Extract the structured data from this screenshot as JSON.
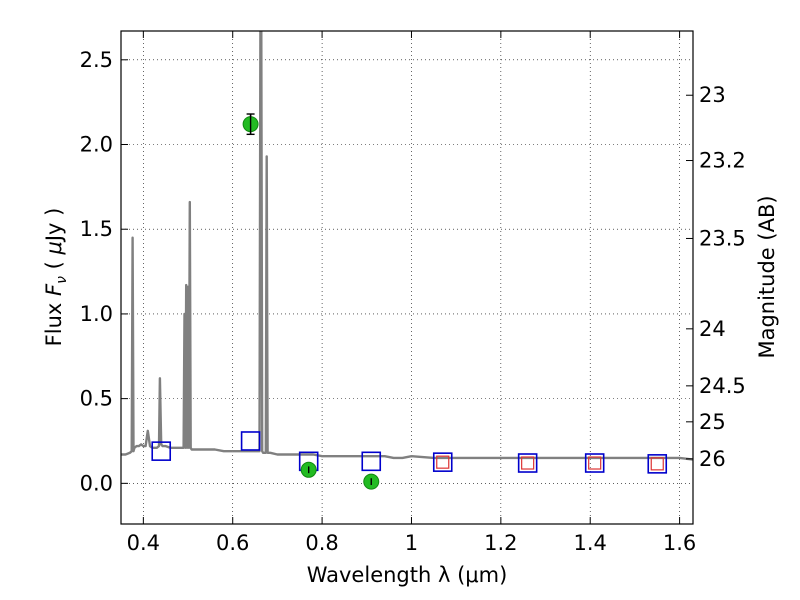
{
  "chart_data": {
    "type": "line",
    "xlabel": "Wavelength  λ (μm)",
    "ylabel": "Flux  F_ν ( μJy )",
    "ylabel_parts": [
      "Flux  ",
      "F",
      "ν",
      " ( ",
      "μ",
      "Jy )"
    ],
    "y2label": "Magnitude (AB)",
    "xlim": [
      0.35,
      1.63
    ],
    "ylim": [
      -0.24,
      2.67
    ],
    "grid": true,
    "x_ticks": [
      0.4,
      0.6,
      0.8,
      1.0,
      1.2,
      1.4,
      1.6
    ],
    "x_tick_labels": [
      "0.4",
      "0.6",
      "0.8",
      "1",
      "1.2",
      "1.4",
      "1.6"
    ],
    "y_ticks": [
      0.0,
      0.5,
      1.0,
      1.5,
      2.0,
      2.5
    ],
    "y_tick_labels": [
      "0.0",
      "0.5",
      "1.0",
      "1.5",
      "2.0",
      "2.5"
    ],
    "mag_ticks": [
      23,
      23.2,
      23.5,
      24,
      24.5,
      25,
      26
    ],
    "mag_tick_labels": [
      "23",
      "23.2",
      "23.5",
      "24",
      "24.5",
      "25",
      "26"
    ],
    "series": [
      {
        "kind": "model_spectrum",
        "color": "#808080",
        "x": [
          0.35,
          0.36,
          0.37,
          0.374,
          0.376,
          0.378,
          0.38,
          0.385,
          0.39,
          0.395,
          0.4,
          0.405,
          0.41,
          0.415,
          0.42,
          0.425,
          0.43,
          0.435,
          0.437,
          0.44,
          0.443,
          0.45,
          0.46,
          0.47,
          0.48,
          0.49,
          0.492,
          0.494,
          0.496,
          0.498,
          0.5,
          0.502,
          0.504,
          0.506,
          0.508,
          0.51,
          0.52,
          0.54,
          0.56,
          0.58,
          0.6,
          0.62,
          0.64,
          0.65,
          0.655,
          0.66,
          0.662,
          0.664,
          0.666,
          0.668,
          0.67,
          0.674,
          0.676,
          0.678,
          0.68,
          0.684,
          0.7,
          0.72,
          0.74,
          0.76,
          0.78,
          0.8,
          0.82,
          0.84,
          0.86,
          0.88,
          0.9,
          0.92,
          0.94,
          0.96,
          0.98,
          1.0,
          1.05,
          1.1,
          1.15,
          1.2,
          1.25,
          1.3,
          1.35,
          1.4,
          1.45,
          1.5,
          1.55,
          1.6,
          1.63
        ],
        "y": [
          0.17,
          0.17,
          0.18,
          0.19,
          1.45,
          0.19,
          0.21,
          0.22,
          0.22,
          0.23,
          0.22,
          0.22,
          0.31,
          0.22,
          0.21,
          0.21,
          0.21,
          0.22,
          0.62,
          0.23,
          0.22,
          0.22,
          0.21,
          0.21,
          0.21,
          0.21,
          1.0,
          0.21,
          1.17,
          0.21,
          1.16,
          0.21,
          1.66,
          0.21,
          0.2,
          0.2,
          0.2,
          0.2,
          0.2,
          0.19,
          0.19,
          0.19,
          0.19,
          0.19,
          0.19,
          0.19,
          2.67,
          2.67,
          0.19,
          0.18,
          0.18,
          0.18,
          1.93,
          0.18,
          0.18,
          0.18,
          0.17,
          0.17,
          0.17,
          0.17,
          0.17,
          0.16,
          0.16,
          0.16,
          0.16,
          0.16,
          0.16,
          0.16,
          0.16,
          0.15,
          0.15,
          0.16,
          0.15,
          0.15,
          0.15,
          0.15,
          0.15,
          0.15,
          0.15,
          0.15,
          0.15,
          0.15,
          0.15,
          0.15,
          0.14
        ]
      },
      {
        "kind": "model_photometry",
        "marker": "square",
        "color": "#0000cc",
        "x": [
          0.44,
          0.64,
          0.77,
          0.91,
          1.07,
          1.26,
          1.41,
          1.55
        ],
        "y": [
          0.19,
          0.25,
          0.13,
          0.13,
          0.125,
          0.12,
          0.12,
          0.115
        ]
      },
      {
        "kind": "model_photometry_nir",
        "marker": "square",
        "color": "#dd3333",
        "x": [
          1.07,
          1.26,
          1.41,
          1.55
        ],
        "y": [
          0.125,
          0.12,
          0.12,
          0.115
        ]
      },
      {
        "kind": "observed",
        "marker": "circle",
        "color": "#22bb22",
        "x": [
          0.64,
          0.77,
          0.91
        ],
        "y": [
          2.12,
          0.08,
          0.01
        ],
        "yerr": [
          0.06,
          0.02,
          0.02
        ]
      }
    ]
  }
}
